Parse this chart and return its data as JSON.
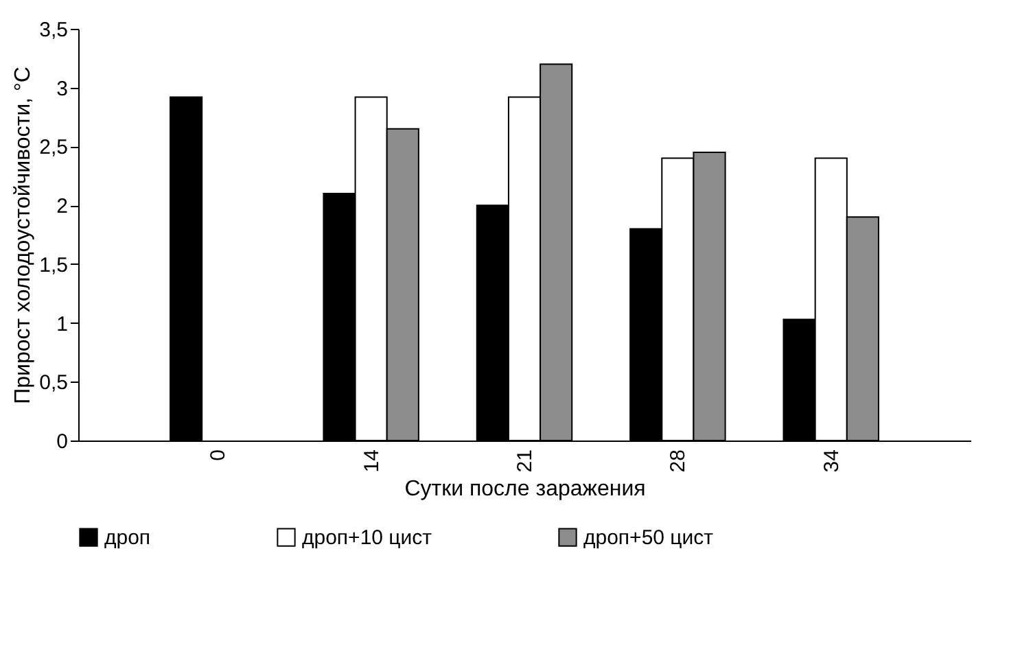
{
  "chart_data": {
    "type": "bar",
    "xlabel": "Сутки после заражения",
    "ylabel": "Прирост холодоустойчивости, °С",
    "categories": [
      "0",
      "14",
      "21",
      "28",
      "34"
    ],
    "series": [
      {
        "name": "дроп",
        "color": "#000000",
        "values": [
          2.92,
          2.1,
          2.0,
          1.8,
          1.03
        ]
      },
      {
        "name": "дроп+10 цист",
        "color": "#ffffff",
        "values": [
          null,
          2.92,
          2.92,
          2.4,
          2.4
        ]
      },
      {
        "name": "дроп+50 цист",
        "color": "#8c8c8c",
        "values": [
          null,
          2.65,
          3.2,
          2.45,
          1.9
        ]
      }
    ],
    "ylim": [
      0,
      3.5
    ],
    "yticks": [
      0,
      {
        "value": 0.5,
        "label": "0,5"
      },
      1,
      {
        "value": 1.5,
        "label": "1,5"
      },
      2,
      {
        "value": 2.5,
        "label": "2,5"
      },
      3,
      {
        "value": 3.5,
        "label": "3,5"
      }
    ],
    "grid": false,
    "legend": "bottom"
  }
}
